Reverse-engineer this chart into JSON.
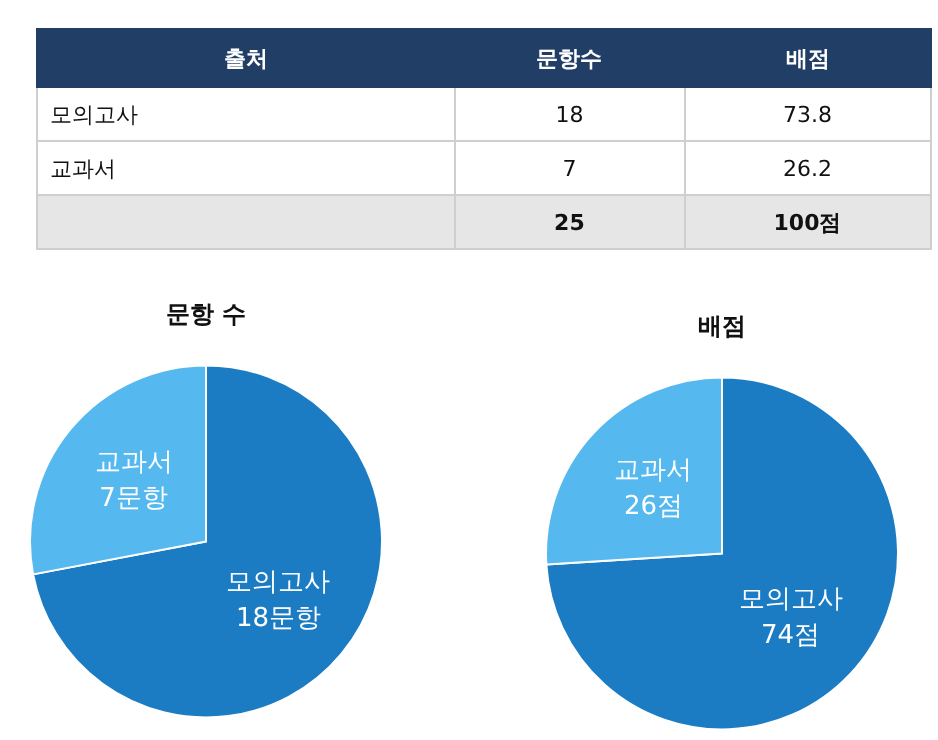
{
  "chart_data": [
    {
      "type": "other",
      "categories": [
        "출처",
        "문항수",
        "배점"
      ],
      "annotations": [
        "모의고사",
        "18",
        "73.8",
        "교과서",
        "7",
        "26.2",
        null,
        "25",
        "100점"
      ]
    },
    {
      "type": "pie",
      "title": "문항 수",
      "categories": [
        "모의고사",
        "교과서"
      ],
      "values": [
        18,
        7
      ],
      "colors": [
        "#1b7cc4",
        "#55b9f0"
      ],
      "value_labels": [
        "18문항",
        "7문항"
      ]
    },
    {
      "type": "pie",
      "title": "배점",
      "categories": [
        "모의고사",
        "교과서"
      ],
      "values": [
        74,
        26
      ],
      "colors": [
        "#1b7cc4",
        "#55b9f0"
      ],
      "value_labels": [
        "74점",
        "26점"
      ]
    }
  ]
}
